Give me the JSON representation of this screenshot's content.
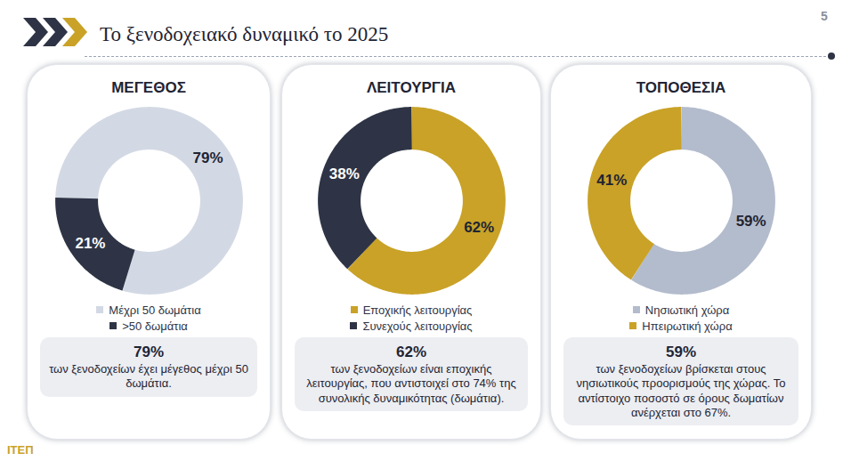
{
  "title": "Το ξενοδοχειακό δυναμικό το 2025",
  "page_number": "5",
  "logo": "ΙΤΕΠ",
  "chart_data": [
    {
      "type": "donut",
      "title": "ΜΕΓΕΘΟΣ",
      "categories": [
        "Μέχρι 50 δωμάτια",
        ">50 δωμάτια"
      ],
      "values": [
        79,
        21
      ],
      "value_labels": [
        "79%",
        "21%"
      ],
      "colors": [
        "#d3d9e4",
        "#2e3445"
      ],
      "data_labels": true,
      "legend": "bottom",
      "annotation": {
        "headline": "79%",
        "text": "των ξενοδοχείων έχει μέγεθος μέχρι 50 δωμάτια."
      }
    },
    {
      "type": "donut",
      "title": "ΛΕΙΤΟΥΡΓΙΑ",
      "categories": [
        "Εποχικής λειτουργίας",
        "Συνεχούς λειτουργίας"
      ],
      "values": [
        62,
        38
      ],
      "value_labels": [
        "62%",
        "38%"
      ],
      "colors": [
        "#c9a227",
        "#2e3445"
      ],
      "data_labels": true,
      "legend": "bottom",
      "annotation": {
        "headline": "62%",
        "text": "των ξενοδοχείων είναι εποχικής λειτουργίας, που αντιστοιχεί στο 74% της συνολικής δυναμικότητας (δωμάτια)."
      }
    },
    {
      "type": "donut",
      "title": "ΤΟΠΟΘΕΣΙΑ",
      "categories": [
        "Νησιωτική χώρα",
        "Ηπειρωτική χώρα"
      ],
      "values": [
        59,
        41
      ],
      "value_labels": [
        "59%",
        "41%"
      ],
      "colors": [
        "#b3bccd",
        "#c9a227"
      ],
      "data_labels": true,
      "legend": "bottom",
      "annotation": {
        "headline": "59%",
        "text": "των ξενοδοχείων βρίσκεται στους νησιωτικούς προορισμούς της χώρας. Το αντίστοιχο ποσοστό σε όρους δωματίων ανέρχεται στο 67%."
      }
    }
  ]
}
